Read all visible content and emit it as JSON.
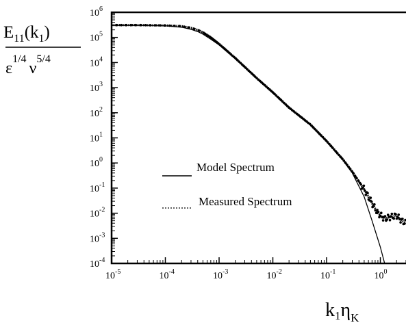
{
  "chart_data": {
    "type": "line",
    "title": "",
    "xscale": "log",
    "yscale": "log",
    "xlim": [
      1e-05,
      3
    ],
    "ylim": [
      0.0001,
      1000000.0
    ],
    "grid": false,
    "legend_position": "lower-left inside plot",
    "ylabel": {
      "numerator": "E",
      "numerator_sub": "11",
      "numerator_arg": "(k",
      "numerator_arg_sub": "1",
      "numerator_close": ")",
      "denominator_eps": "ε",
      "denominator_eps_exp": "1/4",
      "denominator_nu": "ν",
      "denominator_nu_exp": "5/4"
    },
    "xlabel": {
      "k": "k",
      "k_sub": "1",
      "eta": "η",
      "eta_sub": "K"
    },
    "x_ticks": [
      {
        "value": 1e-05,
        "base": "10",
        "exp": "-5"
      },
      {
        "value": 0.0001,
        "base": "10",
        "exp": "-4"
      },
      {
        "value": 0.001,
        "base": "10",
        "exp": "-3"
      },
      {
        "value": 0.01,
        "base": "10",
        "exp": "-2"
      },
      {
        "value": 0.1,
        "base": "10",
        "exp": "-1"
      },
      {
        "value": 1,
        "base": "10",
        "exp": "0"
      }
    ],
    "y_ticks": [
      {
        "value": 0.0001,
        "base": "10",
        "exp": "-4"
      },
      {
        "value": 0.001,
        "base": "10",
        "exp": "-3"
      },
      {
        "value": 0.01,
        "base": "10",
        "exp": "-2"
      },
      {
        "value": 0.1,
        "base": "10",
        "exp": "-1"
      },
      {
        "value": 1,
        "base": "10",
        "exp": "0"
      },
      {
        "value": 10,
        "base": "10",
        "exp": "1"
      },
      {
        "value": 100,
        "base": "10",
        "exp": "2"
      },
      {
        "value": 1000,
        "base": "10",
        "exp": "3"
      },
      {
        "value": 10000.0,
        "base": "10",
        "exp": "4"
      },
      {
        "value": 100000.0,
        "base": "10",
        "exp": "5"
      },
      {
        "value": 1000000.0,
        "base": "10",
        "exp": "6"
      }
    ],
    "series": [
      {
        "name": "Model Spectrum",
        "style": "solid",
        "color": "#000000",
        "x": [
          1e-05,
          3e-05,
          0.0001,
          0.0002,
          0.0003,
          0.0004,
          0.0005,
          0.0007,
          0.001,
          0.002,
          0.005,
          0.01,
          0.02,
          0.05,
          0.1,
          0.2,
          0.3,
          0.5,
          0.7,
          1.0,
          1.2,
          1.5
        ],
        "y": [
          300000,
          300000,
          290000,
          255000,
          210000,
          170000,
          135000,
          85000,
          50000,
          14000,
          2300,
          600,
          150,
          32,
          7,
          1.3,
          0.4,
          0.045,
          0.005,
          0.00045,
          0.0001,
          1e-05
        ]
      },
      {
        "name": "Measured Spectrum",
        "style": "dotted",
        "color": "#000000",
        "x": [
          1e-05,
          3e-05,
          0.0001,
          0.0002,
          0.0003,
          0.0004,
          0.0005,
          0.0007,
          0.001,
          0.002,
          0.005,
          0.01,
          0.02,
          0.05,
          0.1,
          0.2,
          0.3,
          0.5,
          0.7,
          0.9,
          1.2,
          1.5,
          2.0,
          2.5,
          3.0
        ],
        "y": [
          310000,
          310000,
          300000,
          280000,
          240000,
          200000,
          160000,
          100000,
          55000,
          15000,
          2400,
          650,
          160,
          34,
          7.5,
          1.4,
          0.45,
          0.09,
          0.025,
          0.01,
          0.006,
          0.007,
          0.008,
          0.005,
          0.004
        ]
      }
    ]
  }
}
